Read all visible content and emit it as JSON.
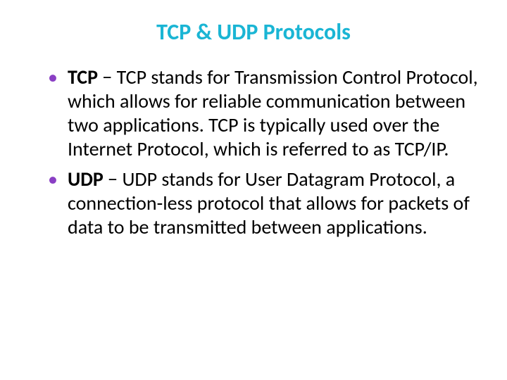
{
  "slide": {
    "title": "TCP & UDP Protocols",
    "title_color": "#1ab5d4",
    "title_fontsize": 32,
    "bullet_color": "#8a3fc4",
    "body_color": "#000000",
    "body_fontsize": 28,
    "line_height": 1.22,
    "items": [
      {
        "term": "TCP",
        "body": " − TCP stands for Transmission Control Protocol, which allows for reliable communication between two applications. TCP is typically used over the Internet Protocol, which is referred to as TCP/IP."
      },
      {
        "term": "UDP",
        "body": " − UDP stands for User Datagram Protocol, a connection-less protocol that allows for packets of data to be transmitted between applications."
      }
    ]
  }
}
